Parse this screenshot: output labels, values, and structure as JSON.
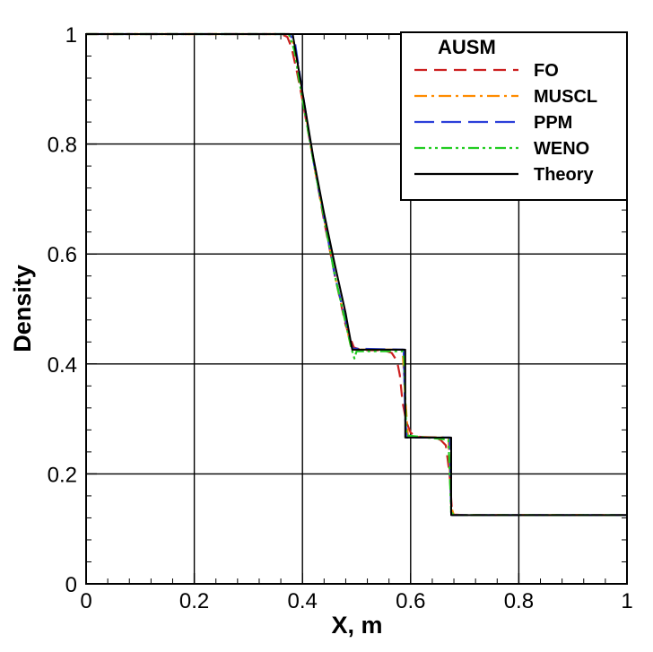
{
  "chart_data": {
    "type": "line",
    "title": "",
    "xlabel": "X, m",
    "ylabel": "Density",
    "xlim": [
      0,
      1
    ],
    "ylim": [
      0,
      1
    ],
    "x_ticks": [
      "0",
      "0.2",
      "0.4",
      "0.6",
      "0.8",
      "1"
    ],
    "y_ticks": [
      "0",
      "0.2",
      "0.4",
      "0.6",
      "0.8",
      "1"
    ],
    "grid": true,
    "legend_placement": "top-right",
    "legend_title": "AUSM",
    "series": [
      {
        "name": "FO",
        "color": "#cc1f1f",
        "dash": "dashed",
        "points": [
          [
            0,
            1
          ],
          [
            0.36,
            1
          ],
          [
            0.372,
            0.995
          ],
          [
            0.38,
            0.975
          ],
          [
            0.39,
            0.93
          ],
          [
            0.4,
            0.88
          ],
          [
            0.42,
            0.77
          ],
          [
            0.44,
            0.66
          ],
          [
            0.46,
            0.56
          ],
          [
            0.48,
            0.47
          ],
          [
            0.495,
            0.43
          ],
          [
            0.51,
            0.425
          ],
          [
            0.55,
            0.425
          ],
          [
            0.565,
            0.42
          ],
          [
            0.575,
            0.405
          ],
          [
            0.58,
            0.38
          ],
          [
            0.585,
            0.33
          ],
          [
            0.592,
            0.295
          ],
          [
            0.6,
            0.275
          ],
          [
            0.61,
            0.268
          ],
          [
            0.64,
            0.266
          ],
          [
            0.655,
            0.262
          ],
          [
            0.665,
            0.252
          ],
          [
            0.672,
            0.2
          ],
          [
            0.676,
            0.14
          ],
          [
            0.68,
            0.126
          ],
          [
            0.7,
            0.125
          ],
          [
            1,
            0.125
          ]
        ]
      },
      {
        "name": "MUSCL",
        "color": "#ff8c00",
        "dash": "dashdot",
        "points": [
          [
            0,
            1
          ],
          [
            0.375,
            1
          ],
          [
            0.385,
            0.98
          ],
          [
            0.395,
            0.92
          ],
          [
            0.42,
            0.77
          ],
          [
            0.46,
            0.56
          ],
          [
            0.49,
            0.43
          ],
          [
            0.495,
            0.426
          ],
          [
            0.585,
            0.426
          ],
          [
            0.59,
            0.34
          ],
          [
            0.595,
            0.268
          ],
          [
            0.67,
            0.266
          ],
          [
            0.675,
            0.14
          ],
          [
            0.68,
            0.125
          ],
          [
            1,
            0.125
          ]
        ]
      },
      {
        "name": "PPM",
        "color": "#2b3fd9",
        "dash": "longdash",
        "points": [
          [
            0,
            1
          ],
          [
            0.376,
            1
          ],
          [
            0.386,
            0.985
          ],
          [
            0.396,
            0.92
          ],
          [
            0.42,
            0.77
          ],
          [
            0.46,
            0.56
          ],
          [
            0.492,
            0.428
          ],
          [
            0.587,
            0.426
          ],
          [
            0.59,
            0.3
          ],
          [
            0.593,
            0.266
          ],
          [
            0.672,
            0.266
          ],
          [
            0.675,
            0.13
          ],
          [
            0.678,
            0.125
          ],
          [
            1,
            0.125
          ]
        ]
      },
      {
        "name": "WENO",
        "color": "#22cc22",
        "dash": "dashdotdot",
        "points": [
          [
            0,
            1
          ],
          [
            0.375,
            1
          ],
          [
            0.385,
            0.97
          ],
          [
            0.395,
            0.91
          ],
          [
            0.42,
            0.77
          ],
          [
            0.46,
            0.56
          ],
          [
            0.49,
            0.43
          ],
          [
            0.496,
            0.41
          ],
          [
            0.5,
            0.423
          ],
          [
            0.585,
            0.423
          ],
          [
            0.588,
            0.41
          ],
          [
            0.592,
            0.27
          ],
          [
            0.67,
            0.262
          ],
          [
            0.675,
            0.13
          ],
          [
            0.68,
            0.125
          ],
          [
            1,
            0.125
          ]
        ]
      },
      {
        "name": "Theory",
        "color": "#000000",
        "dash": "solid",
        "points": [
          [
            0,
            1
          ],
          [
            0.382,
            1
          ],
          [
            0.395,
            0.924
          ],
          [
            0.42,
            0.776
          ],
          [
            0.44,
            0.674
          ],
          [
            0.46,
            0.58
          ],
          [
            0.48,
            0.492
          ],
          [
            0.492,
            0.426
          ],
          [
            0.59,
            0.426
          ],
          [
            0.59,
            0.266
          ],
          [
            0.675,
            0.266
          ],
          [
            0.675,
            0.125
          ],
          [
            1,
            0.125
          ]
        ]
      }
    ]
  }
}
